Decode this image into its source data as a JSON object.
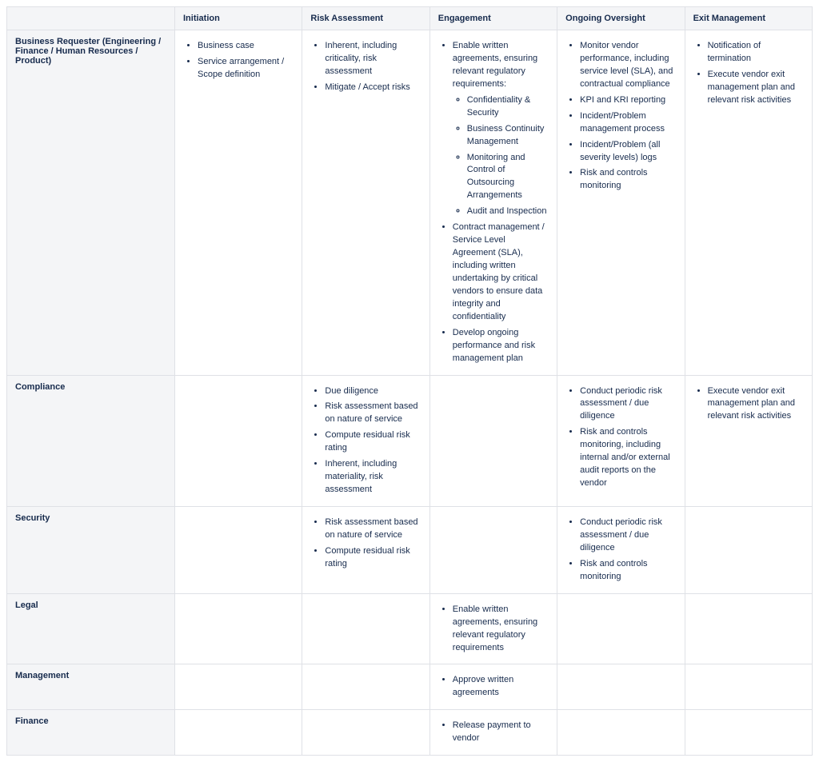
{
  "columns": [
    "Initiation",
    "Risk Assessment",
    "Engagement",
    "Ongoing Oversight",
    "Exit Management"
  ],
  "rows": [
    {
      "label": "Business Requester (Engineering / Finance / Human Resources / Product)",
      "cells": [
        [
          {
            "text": "Business case"
          },
          {
            "text": "Service arrangement / Scope definition"
          }
        ],
        [
          {
            "text": "Inherent, including criticality, risk assessment"
          },
          {
            "text": "Mitigate / Accept risks"
          }
        ],
        [
          {
            "text": "Enable written agreements, ensuring relevant regulatory requirements:",
            "subitems": [
              "Confidentiality & Security",
              "Business Continuity Management",
              "Monitoring and Control of Outsourcing Arrangements",
              "Audit and Inspection"
            ]
          },
          {
            "text": "Contract management / Service Level Agreement (SLA), including written undertaking by critical vendors to ensure data integrity and confidentiality"
          },
          {
            "text": "Develop ongoing performance and risk management plan"
          }
        ],
        [
          {
            "text": "Monitor vendor performance, including service level (SLA), and contractual compliance"
          },
          {
            "text": "KPI and KRI reporting"
          },
          {
            "text": "Incident/Problem management process"
          },
          {
            "text": "Incident/Problem (all severity levels) logs"
          },
          {
            "text": "Risk and controls monitoring"
          }
        ],
        [
          {
            "text": "Notification of termination"
          },
          {
            "text": "Execute vendor exit management plan and relevant risk activities"
          }
        ]
      ]
    },
    {
      "label": "Compliance",
      "cells": [
        [],
        [
          {
            "text": "Due diligence"
          },
          {
            "text": "Risk assessment based on nature of service"
          },
          {
            "text": "Compute residual risk rating"
          },
          {
            "text": "Inherent, including materiality, risk assessment"
          }
        ],
        [],
        [
          {
            "text": "Conduct periodic risk assessment / due diligence"
          },
          {
            "text": "Risk and controls monitoring, including internal and/or external audit reports on the vendor"
          }
        ],
        [
          {
            "text": "Execute vendor exit management plan and relevant risk activities"
          }
        ]
      ]
    },
    {
      "label": "Security",
      "cells": [
        [],
        [
          {
            "text": "Risk assessment based on nature of service"
          },
          {
            "text": "Compute residual risk rating"
          }
        ],
        [],
        [
          {
            "text": "Conduct periodic risk assessment / due diligence"
          },
          {
            "text": "Risk and controls monitoring"
          }
        ],
        []
      ]
    },
    {
      "label": "Legal",
      "cells": [
        [],
        [],
        [
          {
            "text": "Enable written agreements, ensuring relevant regulatory requirements"
          }
        ],
        [],
        []
      ]
    },
    {
      "label": "Management",
      "cells": [
        [],
        [],
        [
          {
            "text": "Approve written agreements"
          }
        ],
        [],
        []
      ]
    },
    {
      "label": "Finance",
      "cells": [
        [],
        [],
        [
          {
            "text": "Release payment to vendor"
          }
        ],
        [],
        []
      ]
    }
  ]
}
